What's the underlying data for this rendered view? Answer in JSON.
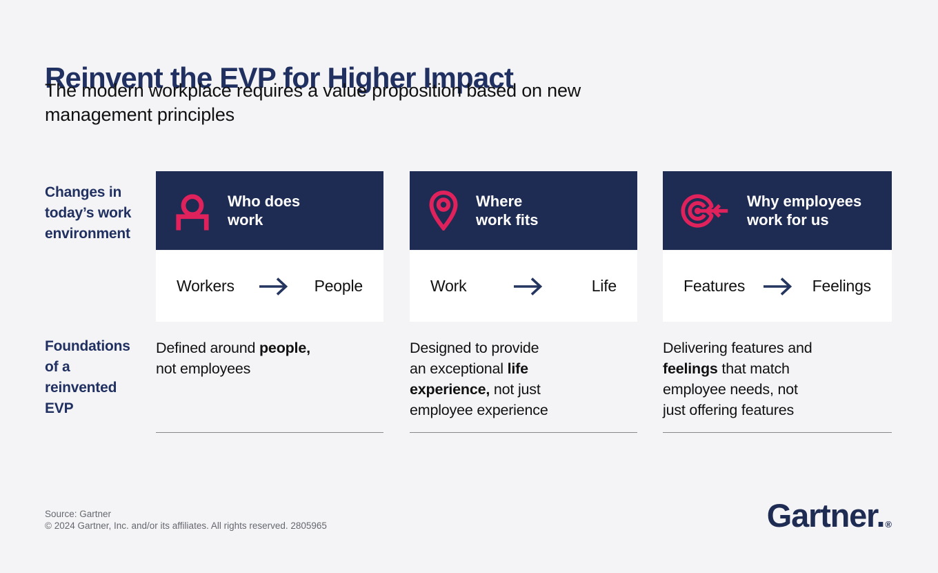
{
  "header": {
    "title": "Reinvent the EVP for Higher Impact",
    "subtitle": "The modern workplace requires a value proposition based on new\nmanagement principles"
  },
  "row_labels": {
    "changes": "Changes in\ntoday’s work\nenvironment",
    "foundations": "Foundations\nof a\nreinvented\nEVP"
  },
  "columns": [
    {
      "icon": "person-icon",
      "title": "Who does\nwork",
      "shift_from": "Workers",
      "shift_to": "People",
      "description": [
        {
          "text": "Defined around ",
          "bold": false
        },
        {
          "text": "people,",
          "bold": true
        },
        {
          "text": "\nnot employees",
          "bold": false
        }
      ]
    },
    {
      "icon": "location-pin-icon",
      "title": "Where\nwork fits",
      "shift_from": "Work",
      "shift_to": "Life",
      "description": [
        {
          "text": "Designed to provide\nan exceptional ",
          "bold": false
        },
        {
          "text": "life\nexperience,",
          "bold": true
        },
        {
          "text": " not just\nemployee experience",
          "bold": false
        }
      ]
    },
    {
      "icon": "target-arrow-icon",
      "title": "Why employees\nwork for us",
      "shift_from": "Features",
      "shift_to": "Feelings",
      "description": [
        {
          "text": "Delivering features and\n",
          "bold": false
        },
        {
          "text": "feelings",
          "bold": true
        },
        {
          "text": " that match\nemployee needs, not\njust offering features",
          "bold": false
        }
      ]
    }
  ],
  "footer": {
    "source": "Source: Gartner",
    "copyright": "© 2024 Gartner, Inc. and/or its affiliates. All rights reserved. 2805965",
    "logo_text": "Gartner.",
    "registered_mark": "®"
  },
  "colors": {
    "background": "#F4F4F6",
    "navy_box": "#1E2B52",
    "title_navy": "#203060",
    "accent_pink": "#E0225C",
    "panel_white": "#FFFFFF",
    "body_text": "#111111",
    "footer_gray": "#65686E",
    "rule_gray": "#85878A"
  }
}
